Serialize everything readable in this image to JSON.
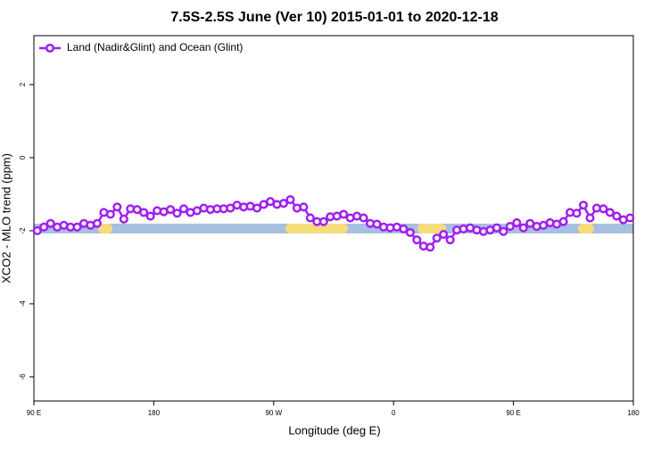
{
  "chart_data": {
    "type": "line",
    "title": "7.5S-2.5S June (Ver 10)   2015-01-01 to 2020-12-18",
    "x_label": "Longitude (deg E)",
    "y_label": "XCO2 - MLO trend (ppm)",
    "xlim": [
      90,
      540
    ],
    "ylim": [
      -6.66,
      3.34
    ],
    "xticks": [
      {
        "value": 90,
        "label": "90 E"
      },
      180,
      {
        "value": 270,
        "label": "90 W"
      },
      {
        "value": 360,
        "label": "0"
      },
      {
        "value": 450,
        "label": "90 E"
      },
      {
        "value": 540,
        "label": "180"
      }
    ],
    "yticks": [
      -6,
      -4,
      -2,
      0,
      2
    ],
    "legend": "top-left",
    "series": [
      {
        "name": "Land (Nadir&Glint) and Ocean (Glint)",
        "color": "#a020f0",
        "x": [
          92.5,
          97.5,
          102.5,
          107.5,
          112.5,
          117.5,
          122.5,
          127.5,
          132.5,
          137.5,
          142.5,
          147.5,
          152.5,
          157.5,
          162.5,
          167.5,
          172.5,
          177.5,
          182.5,
          187.5,
          192.5,
          197.5,
          202.5,
          207.5,
          212.5,
          217.5,
          222.5,
          227.5,
          232.5,
          237.5,
          242.5,
          247.5,
          252.5,
          257.5,
          262.5,
          267.5,
          272.5,
          277.5,
          282.5,
          287.5,
          292.5,
          297.5,
          302.5,
          307.5,
          312.5,
          317.5,
          322.5,
          327.5,
          332.5,
          337.5,
          342.5,
          347.5,
          352.5,
          357.5,
          362.5,
          367.5,
          372.5,
          377.5,
          382.5,
          387.5,
          392.5,
          397.5,
          402.5,
          407.5,
          412.5,
          417.5,
          422.5,
          427.5,
          432.5,
          437.5,
          442.5,
          447.5,
          452.5,
          457.5,
          462.5,
          467.5,
          472.5,
          477.5,
          482.5,
          487.5,
          492.5,
          497.5,
          502.5,
          507.5,
          512.5,
          517.5,
          522.5,
          527.5,
          532.5,
          537.5
        ],
        "values": [
          -2.0,
          -1.9,
          -1.8,
          -1.9,
          -1.85,
          -1.9,
          -1.9,
          -1.8,
          -1.85,
          -1.8,
          -1.5,
          -1.55,
          -1.35,
          -1.68,
          -1.4,
          -1.42,
          -1.5,
          -1.6,
          -1.45,
          -1.48,
          -1.42,
          -1.52,
          -1.4,
          -1.5,
          -1.45,
          -1.38,
          -1.42,
          -1.4,
          -1.4,
          -1.38,
          -1.3,
          -1.35,
          -1.33,
          -1.38,
          -1.28,
          -1.2,
          -1.28,
          -1.25,
          -1.15,
          -1.38,
          -1.35,
          -1.65,
          -1.75,
          -1.75,
          -1.62,
          -1.6,
          -1.55,
          -1.65,
          -1.6,
          -1.65,
          -1.8,
          -1.82,
          -1.9,
          -1.92,
          -1.9,
          -1.95,
          -2.05,
          -2.25,
          -2.42,
          -2.45,
          -2.2,
          -2.1,
          -2.25,
          -1.98,
          -1.95,
          -1.92,
          -1.98,
          -2.02,
          -1.98,
          -1.92,
          -2.02,
          -1.88,
          -1.78,
          -1.92,
          -1.8,
          -1.88,
          -1.85,
          -1.78,
          -1.82,
          -1.75,
          -1.5,
          -1.52,
          -1.3,
          -1.65,
          -1.38,
          -1.4,
          -1.5,
          -1.6,
          -1.7,
          -1.65
        ]
      }
    ]
  }
}
